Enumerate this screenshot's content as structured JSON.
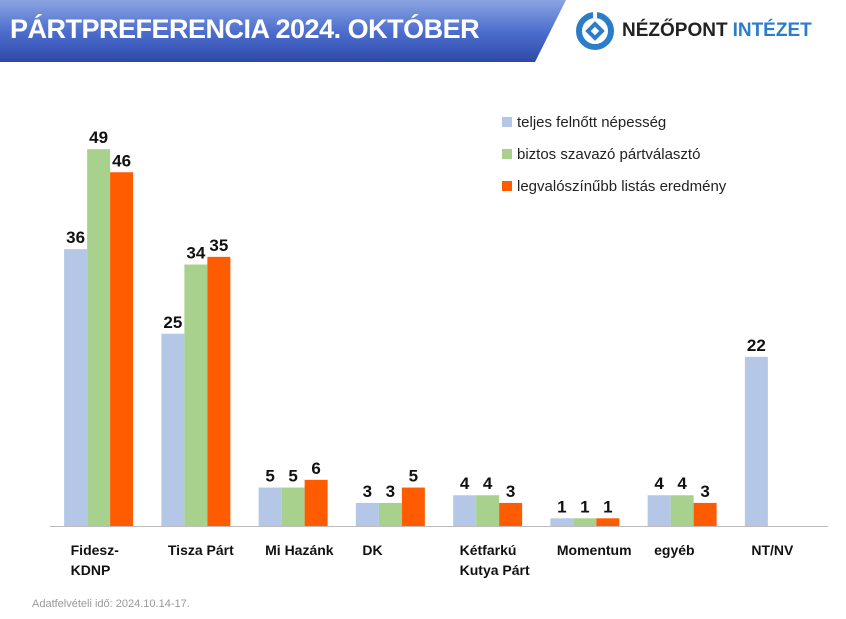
{
  "header": {
    "title": "PÁRTPREFERENCIA 2024. OKTÓBER",
    "logo_text_1": "NÉZŐPONT",
    "logo_text_2": "INTÉZET"
  },
  "footnote": "Adatfelvételi idő: 2024.10.14-17.",
  "colors": {
    "banner": "#3a5cc0",
    "series": [
      "#b4c7e7",
      "#a9d18e",
      "#ff5b00"
    ]
  },
  "chart_data": {
    "type": "bar",
    "categories": [
      [
        "Fidesz-",
        "KDNP"
      ],
      [
        "Tisza Párt"
      ],
      [
        "Mi Hazánk"
      ],
      [
        "DK"
      ],
      [
        "Kétfarkú",
        "Kutya Párt"
      ],
      [
        "Momentum"
      ],
      [
        "egyéb"
      ],
      [
        "NT/NV"
      ]
    ],
    "series": [
      {
        "name": "teljes felnőtt népesség",
        "values": [
          36,
          25,
          5,
          3,
          4,
          1,
          4,
          22
        ]
      },
      {
        "name": "biztos szavazó pártválasztó",
        "values": [
          49,
          34,
          5,
          3,
          4,
          1,
          4,
          null
        ]
      },
      {
        "name": "legvalószínűbb listás eredmény",
        "values": [
          46,
          35,
          6,
          5,
          3,
          1,
          3,
          null
        ]
      }
    ],
    "legend": "top-right",
    "grid": false,
    "ylim": [
      0,
      55
    ]
  }
}
